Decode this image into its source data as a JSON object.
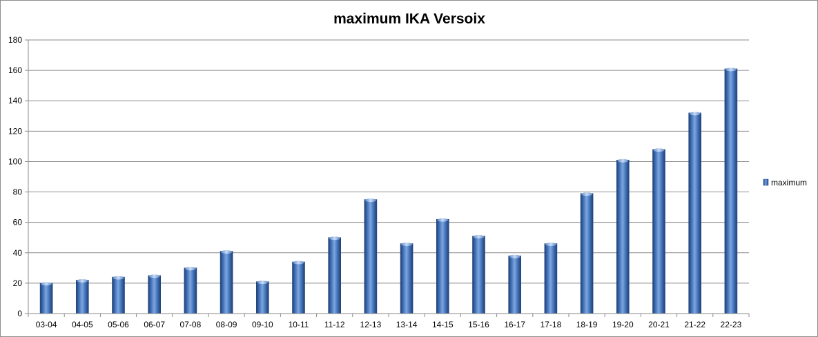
{
  "chart_data": {
    "type": "bar",
    "title": "maximum IKA Versoix",
    "xlabel": "",
    "ylabel": "",
    "categories": [
      "03-04",
      "04-05",
      "05-06",
      "06-07",
      "07-08",
      "08-09",
      "09-10",
      "10-11",
      "11-12",
      "12-13",
      "13-14",
      "14-15",
      "15-16",
      "16-17",
      "17-18",
      "18-19",
      "19-20",
      "20-21",
      "21-22",
      "22-23"
    ],
    "series": [
      {
        "name": "maximum",
        "values": [
          20,
          22,
          24,
          25,
          30,
          41,
          21,
          34,
          50,
          75,
          46,
          62,
          51,
          38,
          46,
          79,
          101,
          108,
          132,
          161
        ],
        "color": "#4a7ec6"
      }
    ],
    "ylim": [
      0,
      180
    ],
    "yticks": [
      0,
      20,
      40,
      60,
      80,
      100,
      120,
      140,
      160,
      180
    ],
    "grid": true,
    "legend_position": "right"
  }
}
